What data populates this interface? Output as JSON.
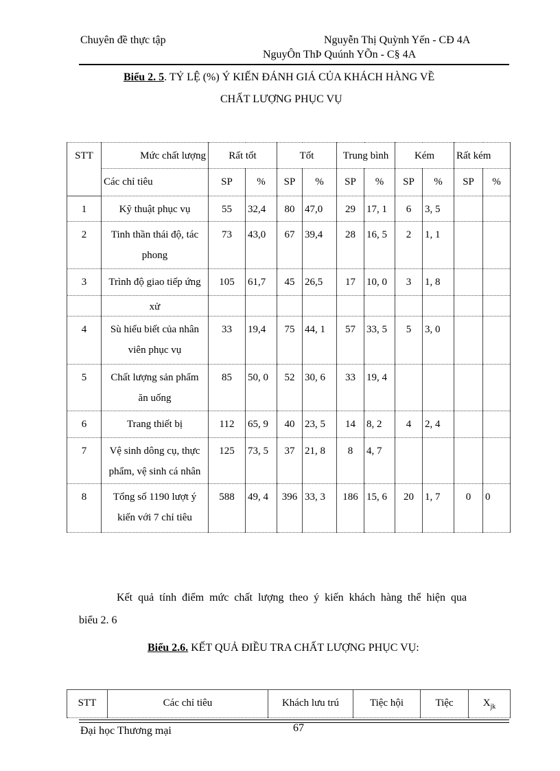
{
  "header": {
    "left": "Chuyên đề thực tập",
    "right": "Nguyễn Thị Quỳnh Yến - CĐ 4A",
    "right_garbled": "NguyÔn ThÞ Quúnh YÕn - C§ 4A"
  },
  "table1": {
    "title_label": "Biểu 2. 5",
    "title_text": ". TỶ LỆ (%) Ý KIẾN ĐÁNH GIÁ CỦA KHÁCH HÀNG VỀ",
    "title_line2": "CHẤT LƯỢNG PHỤC VỤ",
    "head": {
      "stt": "STT",
      "level": "Mức chất lượng",
      "criteria": "Các chỉ tiêu",
      "groups": [
        "Rất tốt",
        "Tốt",
        "Trung bình",
        "Kém",
        "Rất kém"
      ],
      "sub": [
        "SP",
        "%",
        "SP",
        "%",
        "SP",
        "%",
        "SP",
        "%",
        "SP",
        "%"
      ]
    },
    "rows": [
      {
        "stt": "1",
        "criteria": "Kỹ thuật phục vụ",
        "cont": "",
        "v": [
          "55",
          "32,4",
          "80",
          "47,0",
          "29",
          "17, 1",
          "6",
          "3, 5",
          "",
          ""
        ]
      },
      {
        "stt": "2",
        "criteria": "Tinh thần thái độ, tác",
        "cont": "phong",
        "v": [
          "73",
          "43,0",
          "67",
          "39,4",
          "28",
          "16, 5",
          "2",
          "1, 1",
          "",
          ""
        ]
      },
      {
        "stt": "3",
        "criteria": "Trình độ giao tiếp ứng",
        "cont": "xử",
        "v": [
          "105",
          "61,7",
          "45",
          "26,5",
          "17",
          "10, 0",
          "3",
          "1, 8",
          "",
          ""
        ]
      },
      {
        "stt": "4",
        "criteria": "Sù hiểu biết của nhân",
        "cont": "viên phục vụ",
        "v": [
          "33",
          "19,4",
          "75",
          "44, 1",
          "57",
          "33, 5",
          "5",
          "3, 0",
          "",
          ""
        ]
      },
      {
        "stt": "5",
        "criteria": "Chất lượng sản phẩm",
        "cont": "ăn uống",
        "v": [
          "85",
          "50, 0",
          "52",
          "30, 6",
          "33",
          "19, 4",
          "",
          "",
          "",
          ""
        ]
      },
      {
        "stt": "6",
        "criteria": "Trang thiết bị",
        "cont": "",
        "v": [
          "112",
          "65, 9",
          "40",
          "23, 5",
          "14",
          "8, 2",
          "4",
          "2, 4",
          "",
          ""
        ]
      },
      {
        "stt": "7",
        "criteria": "Vệ sinh dông cụ, thực",
        "cont": "phẩm, vệ sinh cá nhân",
        "v": [
          "125",
          "73, 5",
          "37",
          "21, 8",
          "8",
          "4, 7",
          "",
          "",
          "",
          ""
        ]
      },
      {
        "stt": "8",
        "criteria": "Tổng số 1190 lượt ý",
        "cont": "kiến với 7 chỉ tiêu",
        "v": [
          "588",
          "49, 4",
          "396",
          "33, 3",
          "186",
          "15, 6",
          "20",
          "1, 7",
          "0",
          "0"
        ]
      }
    ]
  },
  "paragraph": {
    "line1": "Kết quả tính điểm mức chất lượng theo ý kiến khách hàng thể hiện qua",
    "line2": "biểu 2. 6"
  },
  "table2": {
    "title_label": "Biểu 2.6.",
    "title_text": " KẾT QUẢ ĐIỀU TRA CHẤT LƯỢNG PHỤC VỤ:",
    "head": {
      "stt": "STT",
      "criteria": "Các chỉ tiêu",
      "c1": "Khách lưu trú",
      "c2": "Tiệc hội",
      "c3": "Tiệc",
      "c4": "X",
      "c4_sub": "jk"
    }
  },
  "footer": {
    "left": "Đại học Thương mại",
    "page": "67"
  }
}
